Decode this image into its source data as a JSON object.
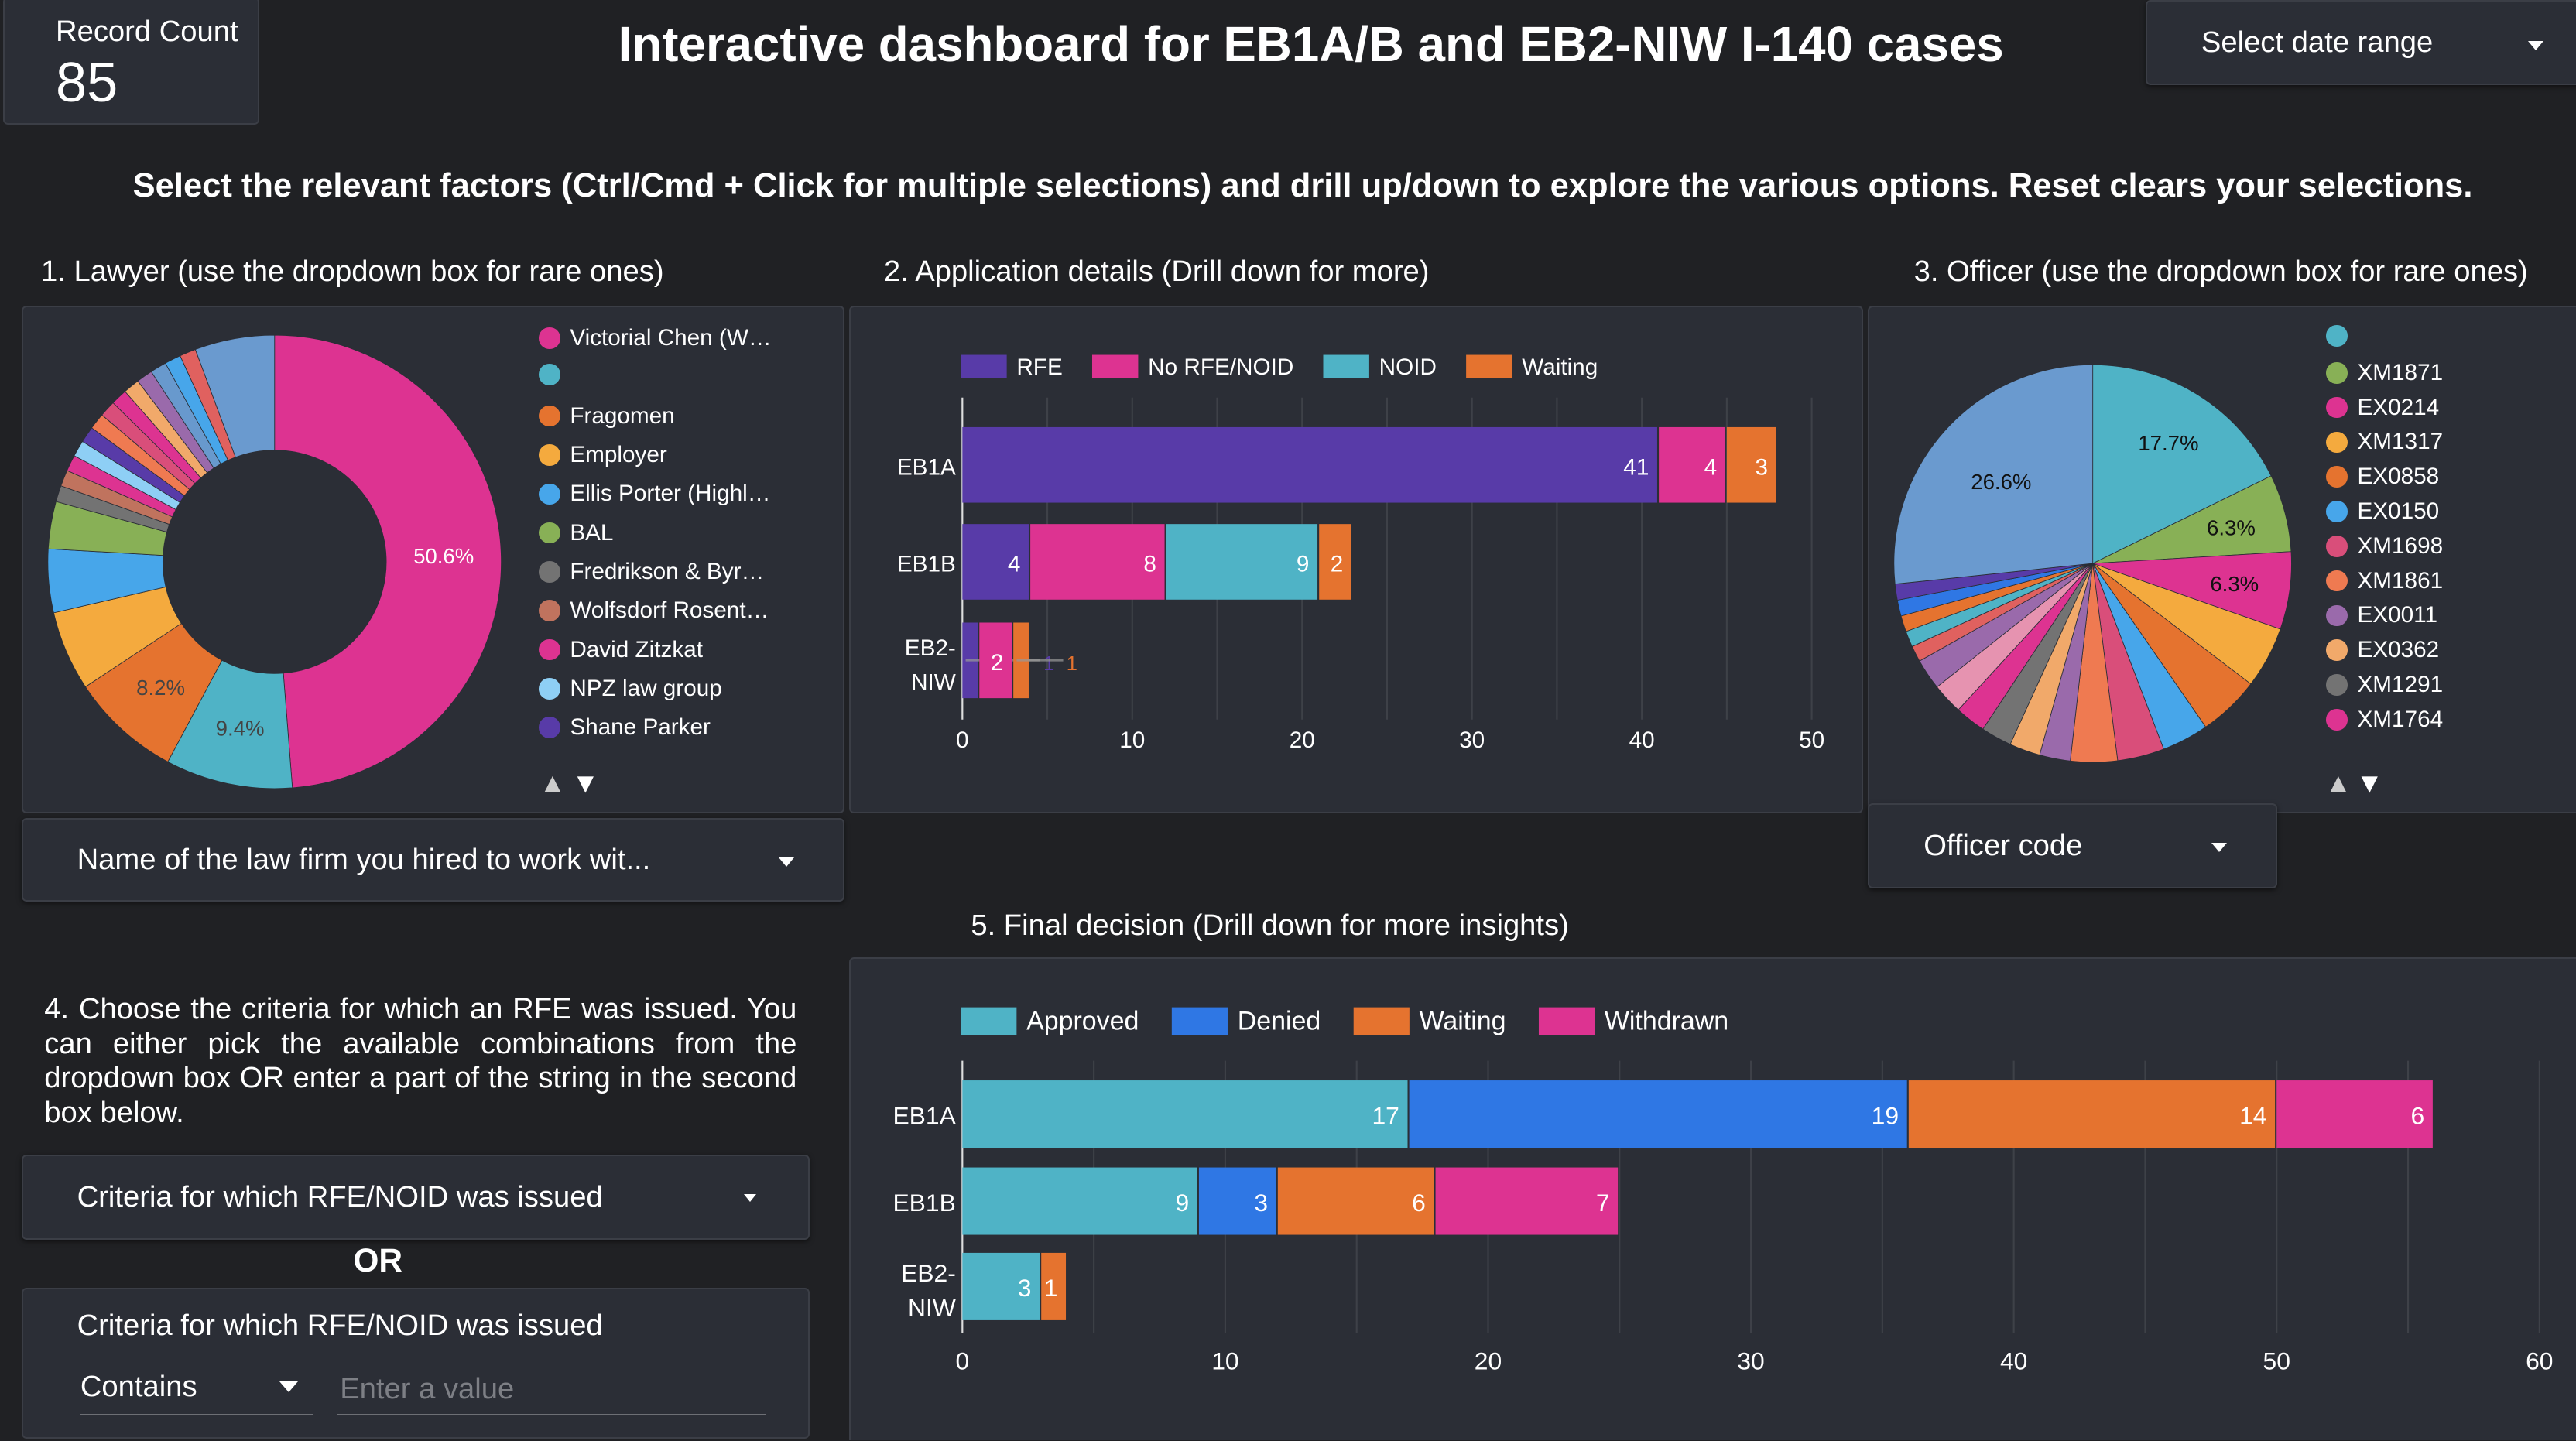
{
  "header": {
    "record_count_label": "Record Count",
    "record_count_value": "85",
    "title": "Interactive dashboard for EB1A/B and EB2-NIW I-140 cases",
    "date_range_label": "Select date range",
    "instructions": "Select the relevant factors (Ctrl/Cmd + Click for multiple selections) and drill up/down to explore the various options. Reset clears your selections."
  },
  "sections": {
    "lawyer_heading": "1. Lawyer (use the dropdown box for rare ones)",
    "application_heading": "2. Application details (Drill down for more)",
    "officer_heading": "3. Officer (use the dropdown box for rare ones)",
    "criteria_text": "4. Choose the criteria for which an RFE was issued. You can either pick the available combinations from the dropdown box OR enter a part of the string in the second box below.",
    "decision_heading": "5. Final decision (Drill down for more insights)"
  },
  "controls": {
    "lawyer_dropdown": "Name of the law firm you hired to work wit...",
    "officer_dropdown": "Officer code",
    "criteria_dropdown": "Criteria for which RFE/NOID was issued",
    "or_label": "OR",
    "criteria_filter_label": "Criteria for which RFE/NOID was issued",
    "criteria_operator": "Contains",
    "criteria_placeholder": "Enter a value",
    "legend_up": "▲",
    "legend_down": "▼"
  },
  "chart_data": [
    {
      "type": "pie",
      "variant": "donut",
      "legend": [
        "Victorial Chen (W…",
        "",
        "Fragomen",
        "Employer",
        "Ellis Porter (Highl…",
        "BAL",
        "Fredrikson & Byr…",
        "Wolfsdorf Rosent…",
        "David Zitzkat",
        "NPZ law group",
        "Shane Parker"
      ],
      "legend_colors": [
        "#dd3391",
        "#4fb3c6",
        "#e5732f",
        "#f4aa3e",
        "#47a6ea",
        "#88b056",
        "#737373",
        "#c0735e",
        "#dd3391",
        "#8ecff5",
        "#583ba8"
      ],
      "slices": [
        50.6,
        9.4,
        8.2,
        5.9,
        4.7,
        3.5,
        1.2,
        1.2,
        1.2,
        1.2,
        1.2,
        1.2,
        1.2,
        1.2,
        1.2,
        1.2,
        1.2,
        1.2,
        1.2,
        5.9
      ],
      "slice_colors": [
        "#dd3391",
        "#4fb3c6",
        "#e5732f",
        "#f4aa3e",
        "#47a6ea",
        "#88b056",
        "#737373",
        "#c0735e",
        "#dd3391",
        "#8ecff5",
        "#583ba8",
        "#ef7a51",
        "#d94e7a",
        "#dd3391",
        "#f1a96a",
        "#9a6aab",
        "#6899cd",
        "#47a6ea",
        "#e0615f",
        "#6a9acf"
      ],
      "slice_labels": [
        "50.6%",
        "9.4%",
        "8.2%"
      ]
    },
    {
      "type": "bar",
      "orientation": "horizontal",
      "stacked": true,
      "categories": [
        "EB1A",
        "EB1B",
        "EB2-NIW"
      ],
      "series": [
        {
          "name": "RFE",
          "color": "#583ba8",
          "values": [
            41,
            4,
            1
          ]
        },
        {
          "name": "No RFE/NOID",
          "color": "#dd3391",
          "values": [
            4,
            8,
            2
          ]
        },
        {
          "name": "NOID",
          "color": "#4fb3c6",
          "values": [
            0,
            9,
            0
          ]
        },
        {
          "name": "Waiting",
          "color": "#e5732f",
          "values": [
            3,
            2,
            1
          ]
        }
      ],
      "xlim": [
        0,
        50
      ],
      "xticks": [
        "0",
        "10",
        "20",
        "30",
        "40",
        "50"
      ],
      "grid": true,
      "legend_position": "top"
    },
    {
      "type": "pie",
      "legend": [
        "",
        "XM1871",
        "EX0214",
        "XM1317",
        "EX0858",
        "EX0150",
        "XM1698",
        "XM1861",
        "EX0011",
        "EX0362",
        "XM1291",
        "XM1764"
      ],
      "legend_colors": [
        "#4fb3c6",
        "#88b056",
        "#dd3391",
        "#f4aa3e",
        "#e5732f",
        "#47a6ea",
        "#d94e7a",
        "#ef7a51",
        "#9a6aab",
        "#f1a96a",
        "#737373",
        "#dd3391"
      ],
      "slices": [
        17.7,
        6.3,
        6.3,
        5.0,
        5.0,
        3.8,
        3.8,
        3.8,
        2.5,
        2.5,
        2.5,
        2.5,
        2.5,
        2.5,
        1.3,
        1.3,
        1.3,
        1.3,
        1.3,
        26.6
      ],
      "slice_colors": [
        "#4fb3c6",
        "#88b056",
        "#dd3391",
        "#f4aa3e",
        "#e5732f",
        "#47a6ea",
        "#d94e7a",
        "#ef7a51",
        "#9a6aab",
        "#f1a96a",
        "#737373",
        "#dd3391",
        "#e693b0",
        "#9a6aab",
        "#e0615f",
        "#4fb3c6",
        "#e5732f",
        "#2f77e4",
        "#583ba8",
        "#6a9acf"
      ],
      "slice_labels": [
        "17.7%",
        "6.3%",
        "6.3%"
      ],
      "big_label": "26.6%"
    },
    {
      "type": "bar",
      "orientation": "horizontal",
      "stacked": true,
      "categories": [
        "EB1A",
        "EB1B",
        "EB2-NIW"
      ],
      "series": [
        {
          "name": "Approved",
          "color": "#4fb3c6",
          "values": [
            17,
            9,
            3
          ]
        },
        {
          "name": "Denied",
          "color": "#2f77e4",
          "values": [
            19,
            3,
            0
          ]
        },
        {
          "name": "Waiting",
          "color": "#e5732f",
          "values": [
            14,
            6,
            1
          ]
        },
        {
          "name": "Withdrawn",
          "color": "#dd3391",
          "values": [
            6,
            7,
            0
          ]
        }
      ],
      "xlim": [
        0,
        60
      ],
      "xticks": [
        "0",
        "10",
        "20",
        "30",
        "40",
        "50",
        "60"
      ],
      "grid": true,
      "legend_position": "top"
    }
  ]
}
